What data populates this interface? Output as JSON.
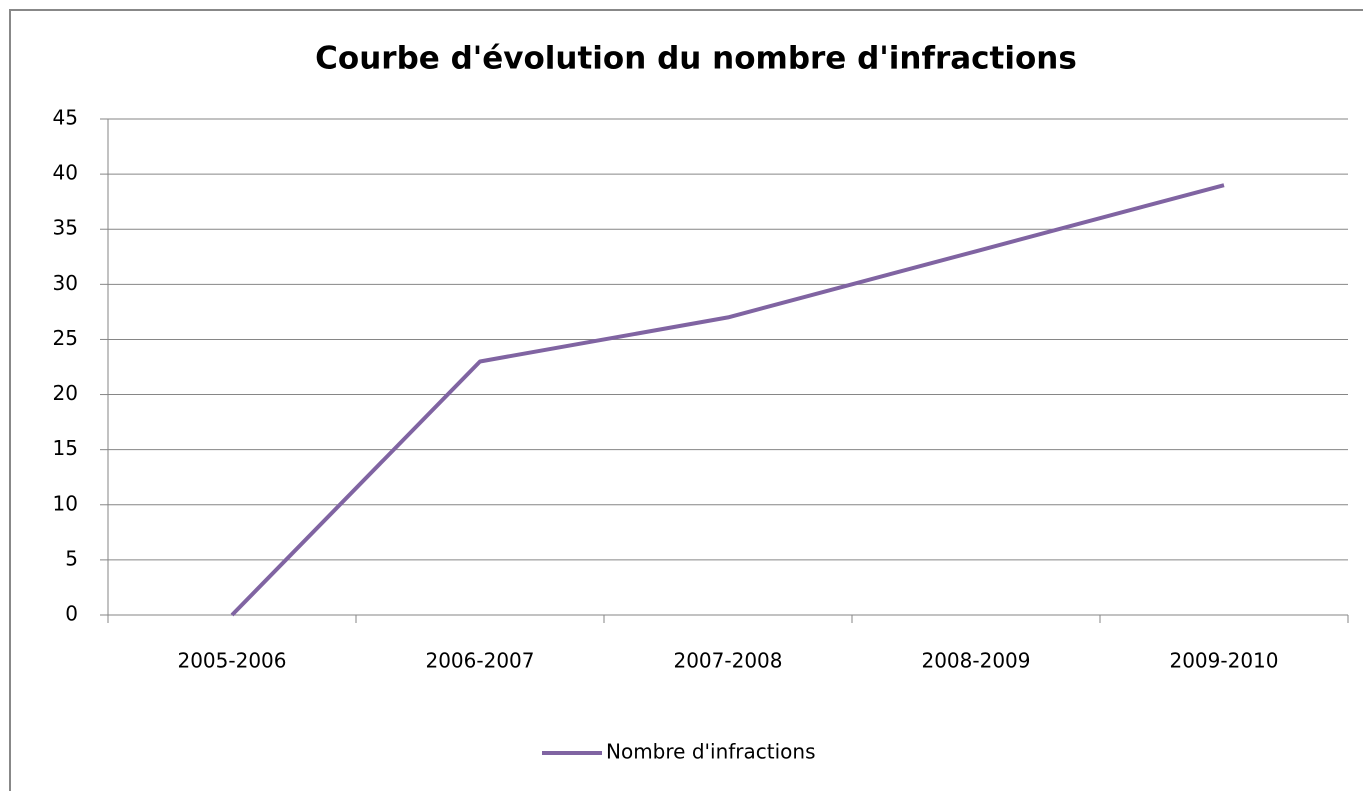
{
  "chart_data": {
    "type": "line",
    "title": "Courbe d'évolution du nombre d'infractions",
    "categories": [
      "2005-2006",
      "2006-2007",
      "2007-2008",
      "2008-2009",
      "2009-2010"
    ],
    "series": [
      {
        "name": "Nombre d'infractions",
        "color": "#8064a2",
        "values": [
          0,
          23,
          27,
          33,
          39
        ]
      }
    ],
    "ylim": [
      0,
      45
    ],
    "yticks": [
      0,
      5,
      10,
      15,
      20,
      25,
      30,
      35,
      40,
      45
    ],
    "grid": true,
    "legend": "bottom"
  }
}
